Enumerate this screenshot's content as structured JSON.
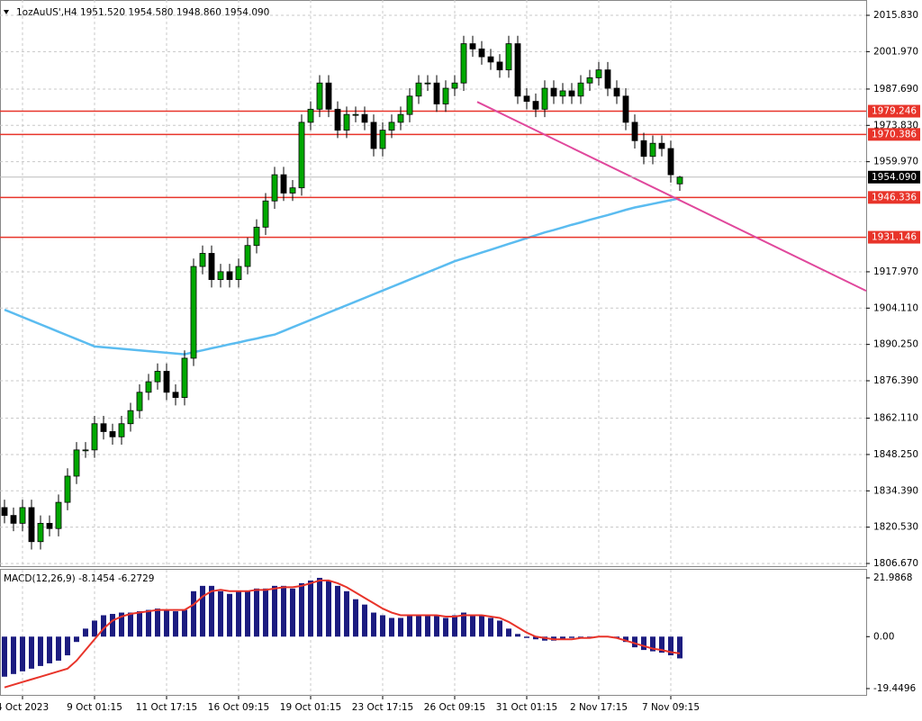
{
  "chart_data": {
    "type": "candlestick",
    "title": "1ozAuUS',H4  1951.520 1954.580 1948.860 1954.090",
    "categories": [
      null,
      null,
      "4 Oct 2023",
      null,
      null,
      null,
      null,
      null,
      null,
      null,
      "9 Oct 01:15",
      null,
      null,
      null,
      null,
      null,
      null,
      null,
      "11 Oct 17:15",
      null,
      null,
      null,
      null,
      null,
      null,
      null,
      "16 Oct 09:15",
      null,
      null,
      null,
      null,
      null,
      null,
      null,
      "19 Oct 01:15",
      null,
      null,
      null,
      null,
      null,
      null,
      null,
      "23 Oct 17:15",
      null,
      null,
      null,
      null,
      null,
      null,
      null,
      "26 Oct 09:15",
      null,
      null,
      null,
      null,
      null,
      null,
      null,
      "31 Oct 01:15",
      null,
      null,
      null,
      null,
      null,
      null,
      null,
      "2 Nov 17:15",
      null,
      null,
      null,
      null,
      null,
      null,
      null,
      "7 Nov 09:15",
      null
    ],
    "open": [
      1828,
      1825,
      1822,
      1828,
      1815,
      1822,
      1820,
      1830,
      1840,
      1850,
      1850,
      1860,
      1857,
      1855,
      1860,
      1865,
      1872,
      1876,
      1880,
      1872,
      1870,
      1885,
      1920,
      1925,
      1915,
      1918,
      1915,
      1920,
      1928,
      1935,
      1945,
      1955,
      1948,
      1950,
      1975,
      1980,
      1990,
      1980,
      1972,
      1978,
      1978,
      1975,
      1965,
      1972,
      1975,
      1978,
      1985,
      1990,
      1990,
      1982,
      1988,
      1990,
      2005,
      2003,
      2000,
      1998,
      1995,
      2005,
      1985,
      1983,
      1980,
      1988,
      1985,
      1987,
      1985,
      1990,
      1992,
      1995,
      1988,
      1985,
      1975,
      1968,
      1962,
      1967,
      1965,
      1951.52
    ],
    "high": [
      1831,
      1828,
      1831,
      1831,
      1825,
      1825,
      1833,
      1843,
      1853,
      1853,
      1863,
      1863,
      1860,
      1863,
      1868,
      1875,
      1879,
      1883,
      1883,
      1875,
      1888,
      1923,
      1928,
      1928,
      1921,
      1921,
      1923,
      1931,
      1938,
      1948,
      1958,
      1958,
      1953,
      1978,
      1983,
      1993,
      1993,
      1983,
      1981,
      1981,
      1981,
      1978,
      1975,
      1978,
      1981,
      1988,
      1993,
      1993,
      1993,
      1991,
      1993,
      2008,
      2008,
      2006,
      2003,
      2001,
      2008,
      2008,
      1988,
      1986,
      1991,
      1991,
      1990,
      1990,
      1993,
      1995,
      1998,
      1998,
      1991,
      1988,
      1978,
      1971,
      1970,
      1970,
      1968,
      1954.58
    ],
    "low": [
      1822,
      1819,
      1819,
      1812,
      1812,
      1817,
      1817,
      1827,
      1837,
      1847,
      1847,
      1854,
      1852,
      1852,
      1857,
      1862,
      1869,
      1873,
      1869,
      1867,
      1867,
      1882,
      1917,
      1912,
      1912,
      1912,
      1912,
      1917,
      1925,
      1932,
      1942,
      1945,
      1945,
      1947,
      1972,
      1977,
      1977,
      1969,
      1969,
      1975,
      1972,
      1962,
      1962,
      1969,
      1972,
      1975,
      1982,
      1987,
      1979,
      1979,
      1985,
      1987,
      2000,
      1997,
      1995,
      1992,
      1992,
      1982,
      1980,
      1977,
      1977,
      1982,
      1982,
      1982,
      1982,
      1987,
      1989,
      1985,
      1982,
      1972,
      1965,
      1959,
      1959,
      1962,
      1952,
      1948.86
    ],
    "close": [
      1825,
      1822,
      1828,
      1815,
      1822,
      1820,
      1830,
      1840,
      1850,
      1850,
      1860,
      1857,
      1855,
      1860,
      1865,
      1872,
      1876,
      1880,
      1872,
      1870,
      1885,
      1920,
      1925,
      1915,
      1918,
      1915,
      1920,
      1928,
      1935,
      1945,
      1955,
      1948,
      1950,
      1975,
      1980,
      1990,
      1980,
      1972,
      1978,
      1978,
      1975,
      1965,
      1972,
      1975,
      1978,
      1985,
      1990,
      1990,
      1982,
      1988,
      1990,
      2005,
      2003,
      2000,
      1998,
      1995,
      2005,
      1985,
      1983,
      1980,
      1988,
      1985,
      1987,
      1985,
      1990,
      1992,
      1995,
      1988,
      1985,
      1975,
      1968,
      1962,
      1967,
      1965,
      1955,
      1954.09
    ],
    "up_color": "#00a800",
    "down_color": "#000000",
    "ma": {
      "color": "#5bbcf0",
      "values": [
        1903.5,
        1902.1,
        1900.7,
        1899.3,
        1897.9,
        1896.5,
        1895.1,
        1893.7,
        1892.3,
        1890.9,
        1889.5,
        1889.2,
        1888.9,
        1888.6,
        1888.3,
        1888.0,
        1887.7,
        1887.4,
        1887.1,
        1886.8,
        1886.5,
        1887.3,
        1888.0,
        1888.8,
        1889.5,
        1890.3,
        1891.0,
        1891.8,
        1892.5,
        1893.3,
        1894.0,
        1895.4,
        1896.8,
        1898.2,
        1899.6,
        1901.0,
        1902.4,
        1903.8,
        1905.2,
        1906.6,
        1908.0,
        1909.4,
        1910.8,
        1912.2,
        1913.6,
        1915.0,
        1916.4,
        1917.8,
        1919.2,
        1920.6,
        1922.0,
        1923.1,
        1924.2,
        1925.3,
        1926.4,
        1927.5,
        1928.6,
        1929.7,
        1930.8,
        1931.9,
        1933.0,
        1933.9,
        1934.9,
        1935.9,
        1936.8,
        1937.8,
        1938.7,
        1939.6,
        1940.6,
        1941.6,
        1942.5,
        1943.2,
        1943.9,
        1944.6,
        1945.3,
        1946.0
      ]
    },
    "levels": [
      {
        "value": 1979.246,
        "label": "1979.246"
      },
      {
        "value": 1970.386,
        "label": "1970.386"
      },
      {
        "value": 1946.336,
        "label": "1946.336"
      },
      {
        "value": 1931.146,
        "label": "1931.146"
      }
    ],
    "level_color": "#e8342a",
    "current_price": {
      "value": 1954.09,
      "label": "1954.090"
    },
    "trendline": {
      "color": "#e0489c",
      "start_index": 52.5,
      "start": 1982.8,
      "end_index": 95.7,
      "end": 1910.7
    },
    "ylim": [
      1805.3,
      2021.67
    ],
    "yticks": [
      {
        "value": 2015.83,
        "label": "2015.830"
      },
      {
        "value": 2001.97,
        "label": "2001.970"
      },
      {
        "value": 1987.69,
        "label": "1987.690"
      },
      {
        "value": 1973.83,
        "label": "1973.830"
      },
      {
        "value": 1959.97,
        "label": "1959.970"
      },
      {
        "value": 1917.97,
        "label": "1917.970"
      },
      {
        "value": 1904.11,
        "label": "1904.110"
      },
      {
        "value": 1890.25,
        "label": "1890.250"
      },
      {
        "value": 1876.39,
        "label": "1876.390"
      },
      {
        "value": 1862.11,
        "label": "1862.110"
      },
      {
        "value": 1848.25,
        "label": "1848.250"
      },
      {
        "value": 1834.39,
        "label": "1834.390"
      },
      {
        "value": 1820.53,
        "label": "1820.530"
      },
      {
        "value": 1806.67,
        "label": "1806.670"
      }
    ],
    "grid": true,
    "macd": {
      "label": "MACD(12,26,9) -8.1454 -6.2729",
      "hist_color": "#1c1c80",
      "signal_color": "#e8342a",
      "histogram": [
        -15,
        -14,
        -13,
        -12,
        -11,
        -10,
        -9,
        -7,
        -2,
        3,
        6,
        8,
        8.5,
        9,
        9,
        9.5,
        10,
        10.5,
        10,
        9.5,
        10,
        17,
        19,
        19,
        17,
        16,
        17,
        17,
        18,
        18,
        19,
        19,
        18,
        20,
        21,
        22,
        21,
        19,
        17,
        14,
        12,
        9,
        8,
        7,
        7,
        8,
        8,
        8,
        8,
        7,
        8,
        9,
        8,
        8,
        7,
        6,
        3,
        1,
        -0.5,
        -1,
        -1.5,
        -1.5,
        -1,
        -0.5,
        -0.5,
        -0.5,
        0,
        0,
        -0.5,
        -2,
        -4,
        -5,
        -5.5,
        -6,
        -7,
        -8.1454
      ],
      "signal": [
        -19,
        -18,
        -17,
        -16,
        -15,
        -14,
        -13,
        -12,
        -9,
        -5,
        -1,
        3,
        6,
        7.5,
        8.5,
        9,
        9.5,
        10,
        10,
        10,
        10,
        12,
        15,
        17,
        17.5,
        17,
        17,
        17,
        17.5,
        17.5,
        18,
        18.5,
        18.5,
        19,
        20,
        21,
        21,
        20,
        18.5,
        16.5,
        14.5,
        12.5,
        10.5,
        9,
        8,
        8,
        8,
        8,
        8,
        7.5,
        7.5,
        8,
        8,
        8,
        7.5,
        7,
        5.5,
        3.5,
        1.5,
        0,
        -0.5,
        -1,
        -1,
        -1,
        -0.5,
        -0.5,
        0,
        0,
        -0.5,
        -1.5,
        -2.5,
        -3.5,
        -4.5,
        -5,
        -5.8,
        -6.2729
      ],
      "ylim": [
        -22.15,
        25.02
      ],
      "yticks": [
        {
          "value": 21.9868,
          "label": "21.9868"
        },
        {
          "value": 0,
          "label": "0.00"
        },
        {
          "value": -19.4496,
          "label": "-19.4496"
        }
      ]
    }
  }
}
